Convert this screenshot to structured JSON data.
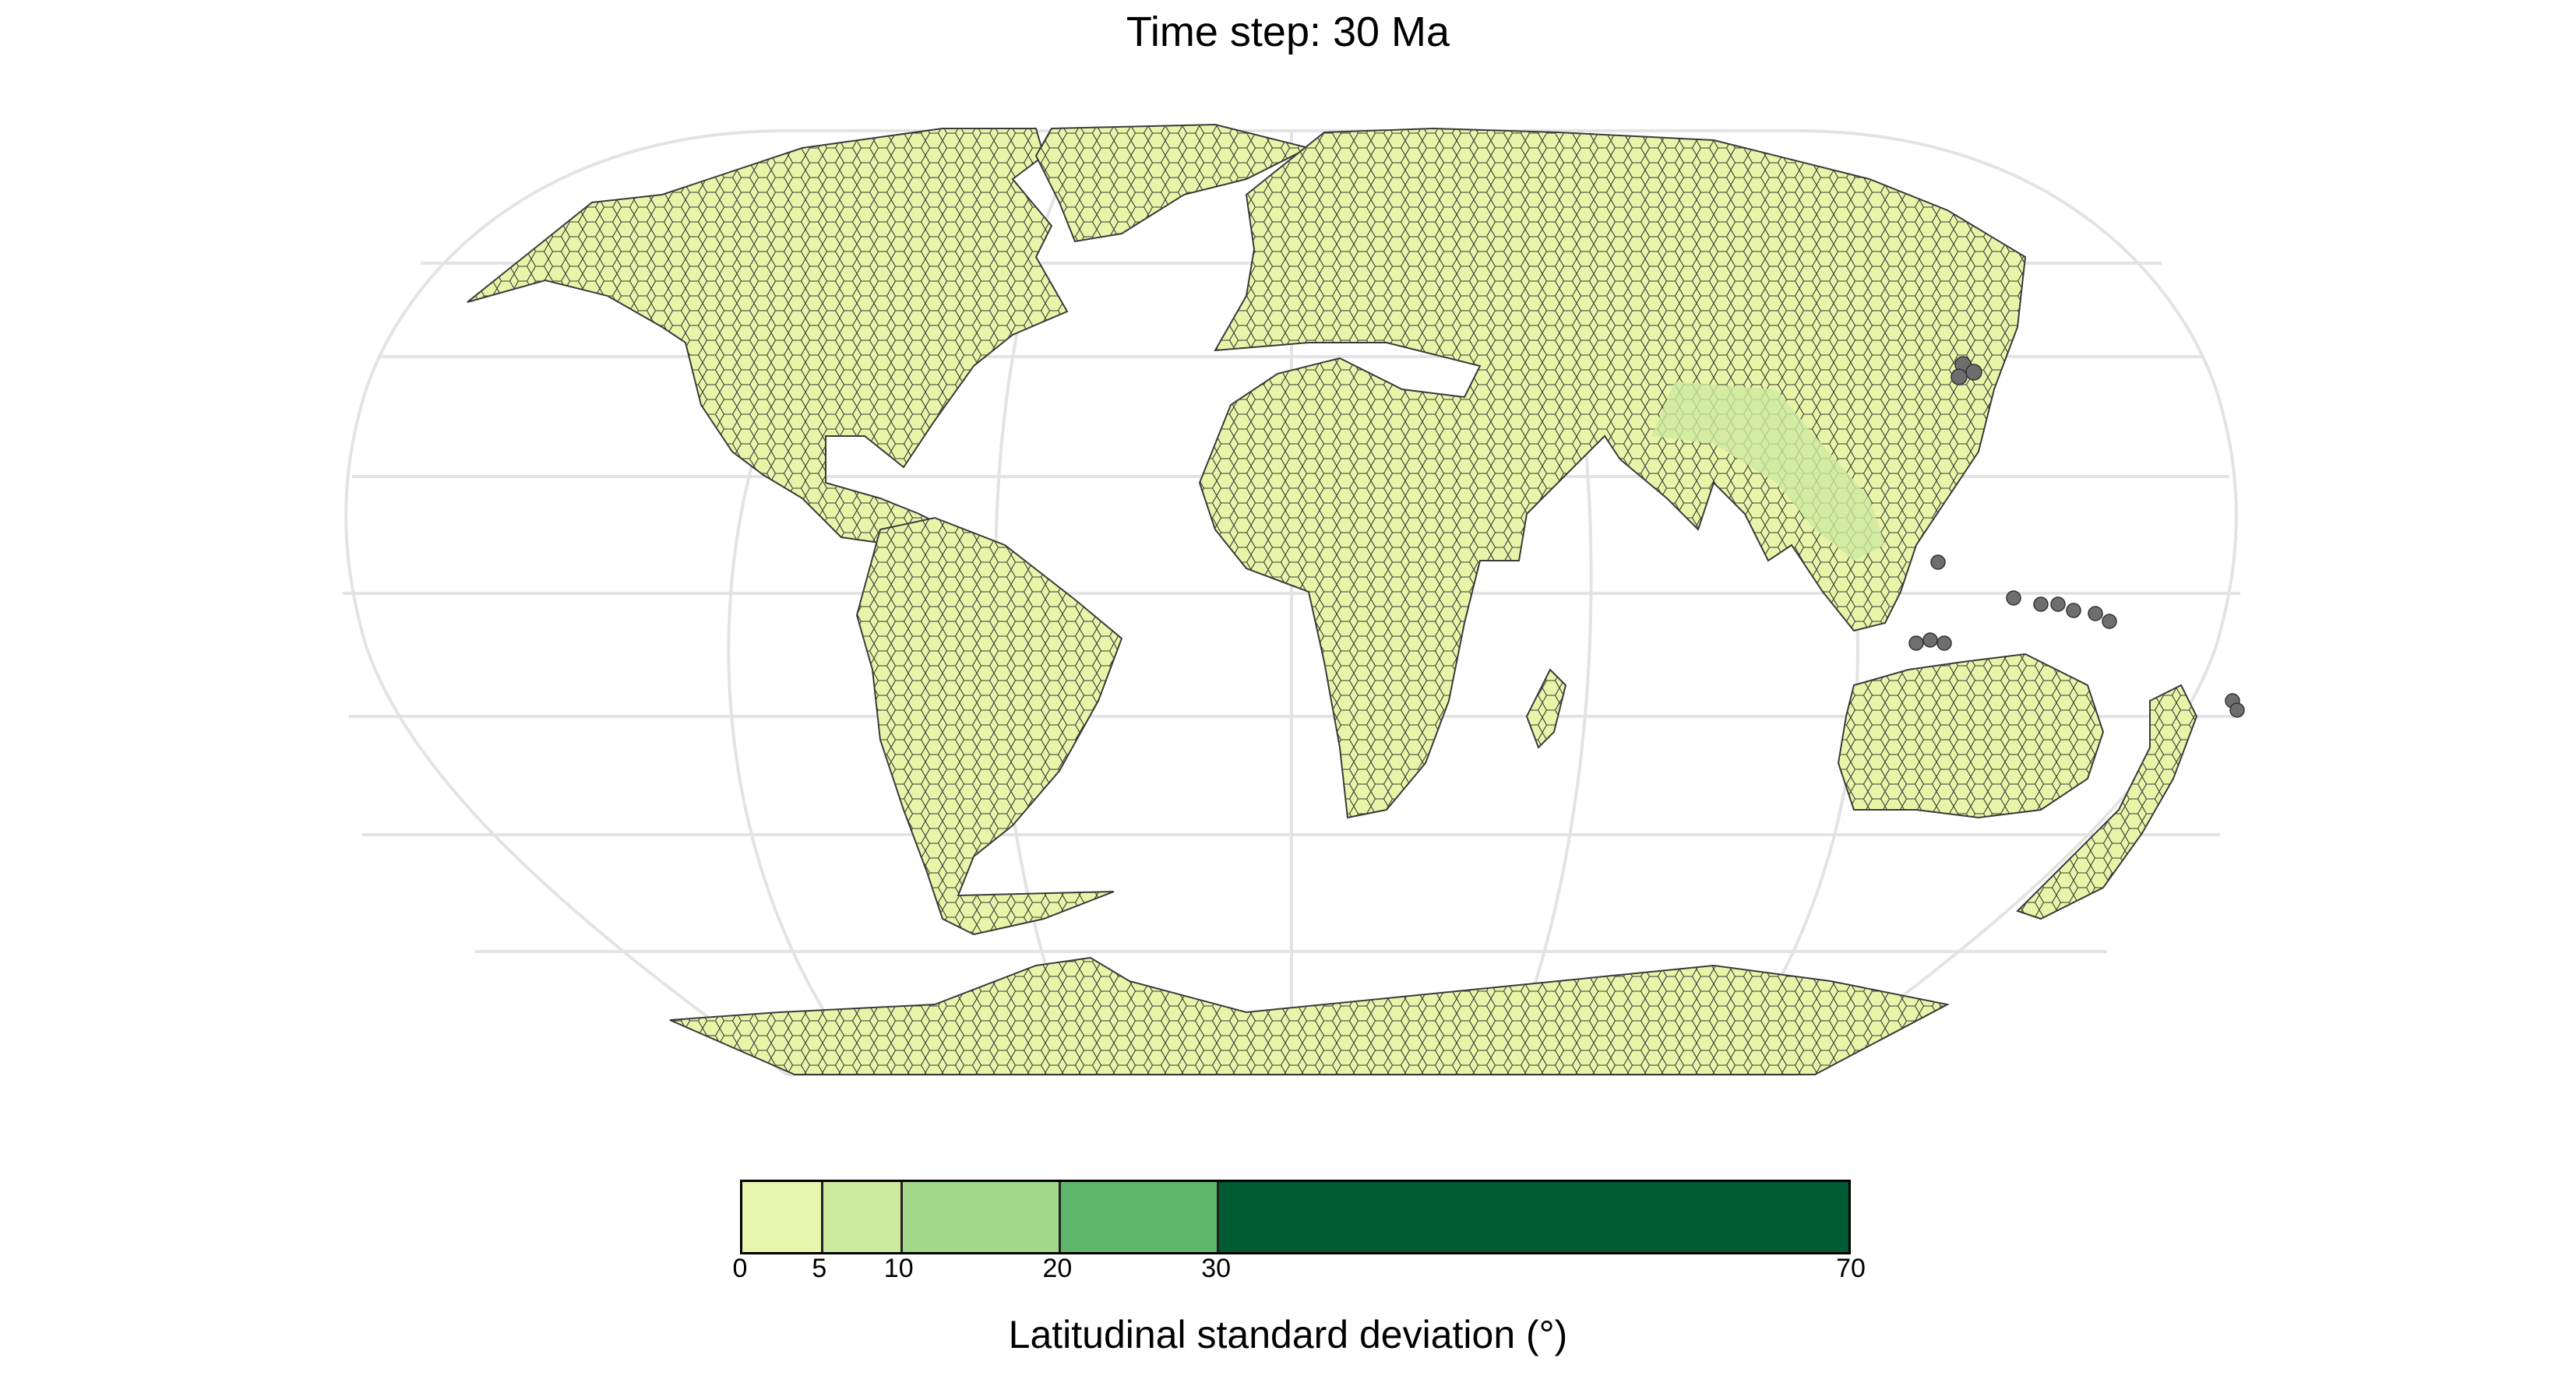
{
  "title": "Time step: 30 Ma",
  "colors": {
    "land_fill": "#e8f5a8",
    "hex_stroke": "#3a3a3a",
    "graticule": "#e0e0e0",
    "no_data": "#6e6e6e",
    "mid_green": "#a4d98a"
  },
  "legend": {
    "label": "Latitudinal standard deviation (°)",
    "bins": [
      {
        "from": 0,
        "to": 5,
        "color": "#e8f5ac"
      },
      {
        "from": 5,
        "to": 10,
        "color": "#cdea9f"
      },
      {
        "from": 10,
        "to": 20,
        "color": "#a3d78a"
      },
      {
        "from": 20,
        "to": 30,
        "color": "#5db66a"
      },
      {
        "from": 30,
        "to": 70,
        "color": "#005a32"
      }
    ],
    "ticks": [
      "0",
      "5",
      "10",
      "20",
      "30",
      "70"
    ]
  }
}
